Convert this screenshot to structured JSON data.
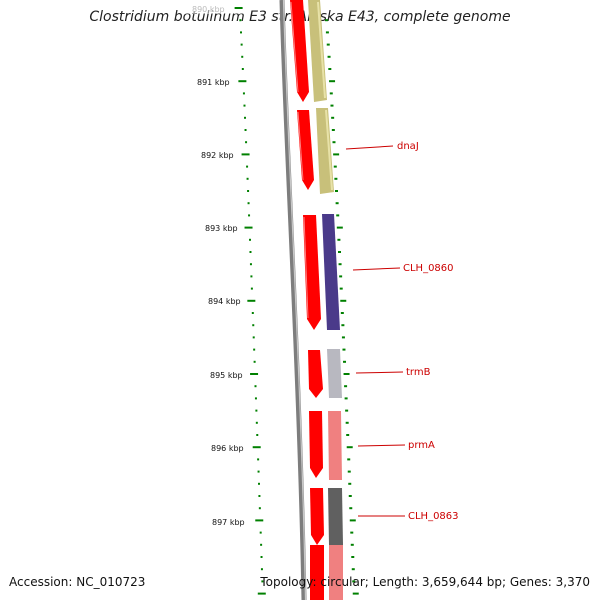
{
  "title": "Clostridium botulinum E3 str. Alaska E43, complete genome",
  "accession_text": "Accession: NC_010723",
  "topology_text": "Topology: circular; Length: 3,659,644 bp; Genes: 3,370",
  "ruler_labels": [
    "890 kbp",
    "891 kbp",
    "892 kbp",
    "893 kbp",
    "894 kbp",
    "895 kbp",
    "896 kbp",
    "897 kbp"
  ],
  "gene_labels": [
    "dnaJ",
    "CLH_0860",
    "trmB",
    "prmA",
    "CLH_0863"
  ],
  "colors": {
    "forward_strand": "#ff0000",
    "backbone": "#808080",
    "tick": "#008000",
    "label": "#cc0000",
    "genes": [
      "#c8c07a",
      "#c8c07a",
      "#4a3a8a",
      "#b8b8c0",
      "#f08080",
      "#606060",
      "#f08080"
    ]
  }
}
